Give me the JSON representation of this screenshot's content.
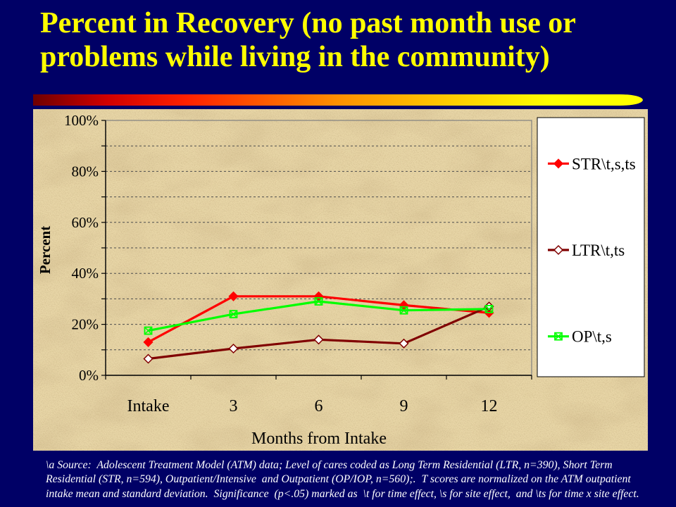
{
  "slide": {
    "title": "Percent in Recovery (no past month use or problems while living in the community)",
    "background_color": "#000066",
    "title_color": "#FFFF00",
    "footer_lines": [
      "\\a Source:  Adolescent Treatment Model (ATM) data; Level of cares coded as Long Term Residential (LTR, n=390), Short Term",
      "Residential (STR, n=594), Outpatient/Intensive  and Outpatient (OP/IOP, n=560);.  T scores are normalized on the ATM outpatient",
      "intake mean and standard deviation.  Significance  (p<.05) marked as  \\t for time effect, \\s for site effect,  and \\ts for time x site effect."
    ]
  },
  "chart_data": {
    "type": "line",
    "categories": [
      "Intake",
      "3",
      "6",
      "9",
      "12"
    ],
    "xlabel": "Months from Intake",
    "ylabel": "Percent",
    "ylim": [
      0,
      100
    ],
    "yticks": [
      0,
      20,
      40,
      60,
      80,
      100
    ],
    "ytick_labels": [
      "0%",
      "20%",
      "40%",
      "60%",
      "80%",
      "100%"
    ],
    "grid": true,
    "grid_step": 10,
    "legend": "right",
    "series": [
      {
        "name": "STR\\t,s,ts",
        "color": "#FF0000",
        "marker": "diamond-filled",
        "values": [
          13,
          31,
          31,
          27.5,
          24.5
        ]
      },
      {
        "name": "LTR\\t,ts",
        "color": "#800000",
        "marker": "diamond-open",
        "values": [
          6.5,
          10.5,
          14,
          12.5,
          27
        ]
      },
      {
        "name": "OP\\t,s",
        "color": "#00FF00",
        "marker": "square-x",
        "values": [
          17.5,
          24,
          29,
          25.5,
          26
        ]
      }
    ]
  }
}
